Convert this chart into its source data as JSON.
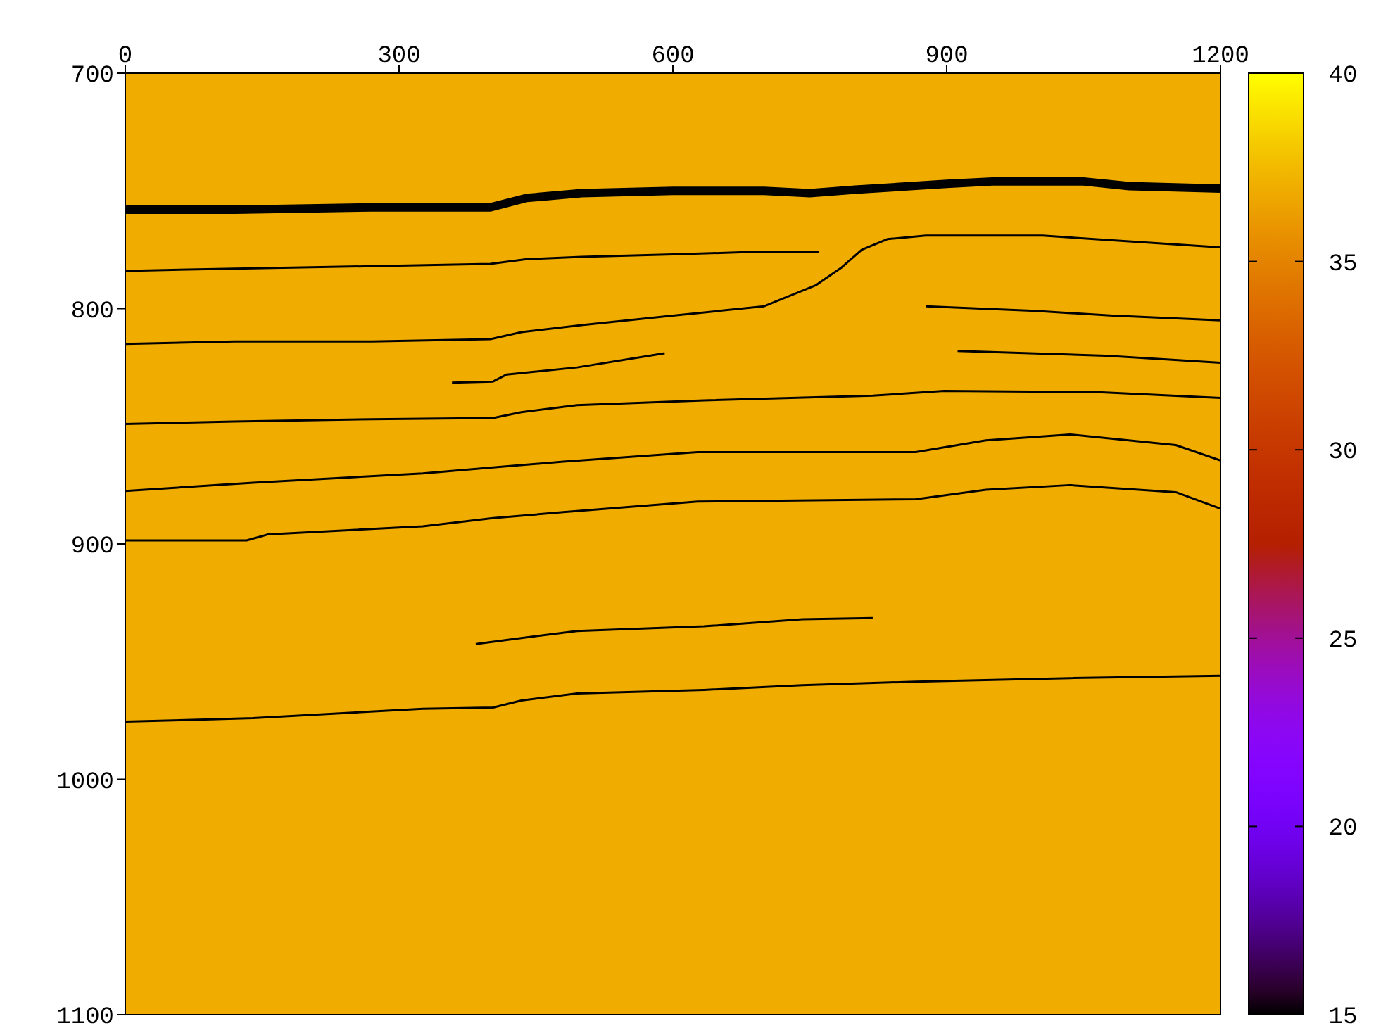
{
  "chart_data": {
    "type": "line",
    "xlim": [
      0,
      1200
    ],
    "xticks": [
      0,
      300,
      600,
      900,
      1200
    ],
    "ylim": [
      1100,
      700
    ],
    "yticks": [
      700,
      800,
      900,
      1000,
      1100
    ],
    "clim": [
      15,
      40
    ],
    "cticks": [
      15,
      20,
      25,
      30,
      35,
      40
    ],
    "marker": "none",
    "line_style": "solid",
    "bands": [
      {
        "axis": "y",
        "from": 700,
        "to": 1100,
        "color": "#f0ad00"
      }
    ],
    "series": [
      {
        "color": "#000000",
        "x": [
          0,
          120,
          270,
          400,
          440,
          500,
          600,
          700,
          750,
          800,
          900,
          950,
          1050,
          1100,
          1200
        ],
        "values": [
          758,
          758,
          757,
          757,
          753,
          751,
          750,
          750,
          751,
          749.5,
          747,
          746,
          746,
          748,
          749
        ]
      },
      {
        "color": "#000000",
        "x": [
          0,
          120,
          270,
          400,
          440,
          500,
          600,
          680,
          760
        ],
        "values": [
          784,
          783,
          782,
          781,
          779,
          778,
          777,
          776,
          776
        ]
      },
      {
        "color": "#000000",
        "x": [
          0,
          120,
          270,
          400,
          434,
          500,
          600,
          700,
          757,
          785,
          807,
          835,
          877,
          1005,
          1082,
          1200
        ],
        "values": [
          815,
          814,
          814,
          813,
          810,
          807,
          803,
          799,
          790,
          782.5,
          775,
          770.5,
          769,
          769,
          771,
          774
        ]
      },
      {
        "color": "#000000",
        "x": [
          877,
          997,
          1082,
          1200
        ],
        "values": [
          799,
          801,
          803,
          805
        ]
      },
      {
        "color": "#000000",
        "x": [
          912,
          1074,
          1200
        ],
        "values": [
          818,
          820,
          823
        ]
      },
      {
        "color": "#000000",
        "x": [
          358,
          403,
          418,
          495,
          591
        ],
        "values": [
          831.5,
          831,
          828,
          825,
          819
        ]
      },
      {
        "color": "#000000",
        "x": [
          0,
          119,
          270,
          403,
          434,
          495,
          634,
          819,
          897,
          1066,
          1200
        ],
        "values": [
          849,
          848,
          847,
          846.5,
          844,
          841,
          839,
          837,
          835,
          835.5,
          838
        ]
      },
      {
        "color": "#000000",
        "x": [
          0,
          140,
          326,
          403,
          480,
          627,
          866,
          943,
          1035,
          1151,
          1200
        ],
        "values": [
          877.5,
          874,
          870,
          867.5,
          865,
          861,
          861,
          856,
          853.5,
          858,
          864.5
        ]
      },
      {
        "color": "#000000",
        "x": [
          0,
          133,
          156,
          326,
          403,
          480,
          627,
          866,
          943,
          1035,
          1151,
          1200
        ],
        "values": [
          898.5,
          898.5,
          896,
          892.5,
          889,
          886.5,
          882,
          881,
          877,
          875,
          878,
          885
        ]
      },
      {
        "color": "#000000",
        "x": [
          384,
          434,
          495,
          634,
          742,
          819
        ],
        "values": [
          942.5,
          940,
          937,
          935,
          932,
          931.5
        ]
      },
      {
        "color": "#000000",
        "x": [
          0,
          94,
          140,
          326,
          403,
          434,
          495,
          634,
          742,
          866,
          1035,
          1200
        ],
        "values": [
          975.5,
          974.5,
          974,
          970,
          969.5,
          966.5,
          963.5,
          962,
          960,
          958.5,
          957,
          956
        ]
      }
    ]
  }
}
